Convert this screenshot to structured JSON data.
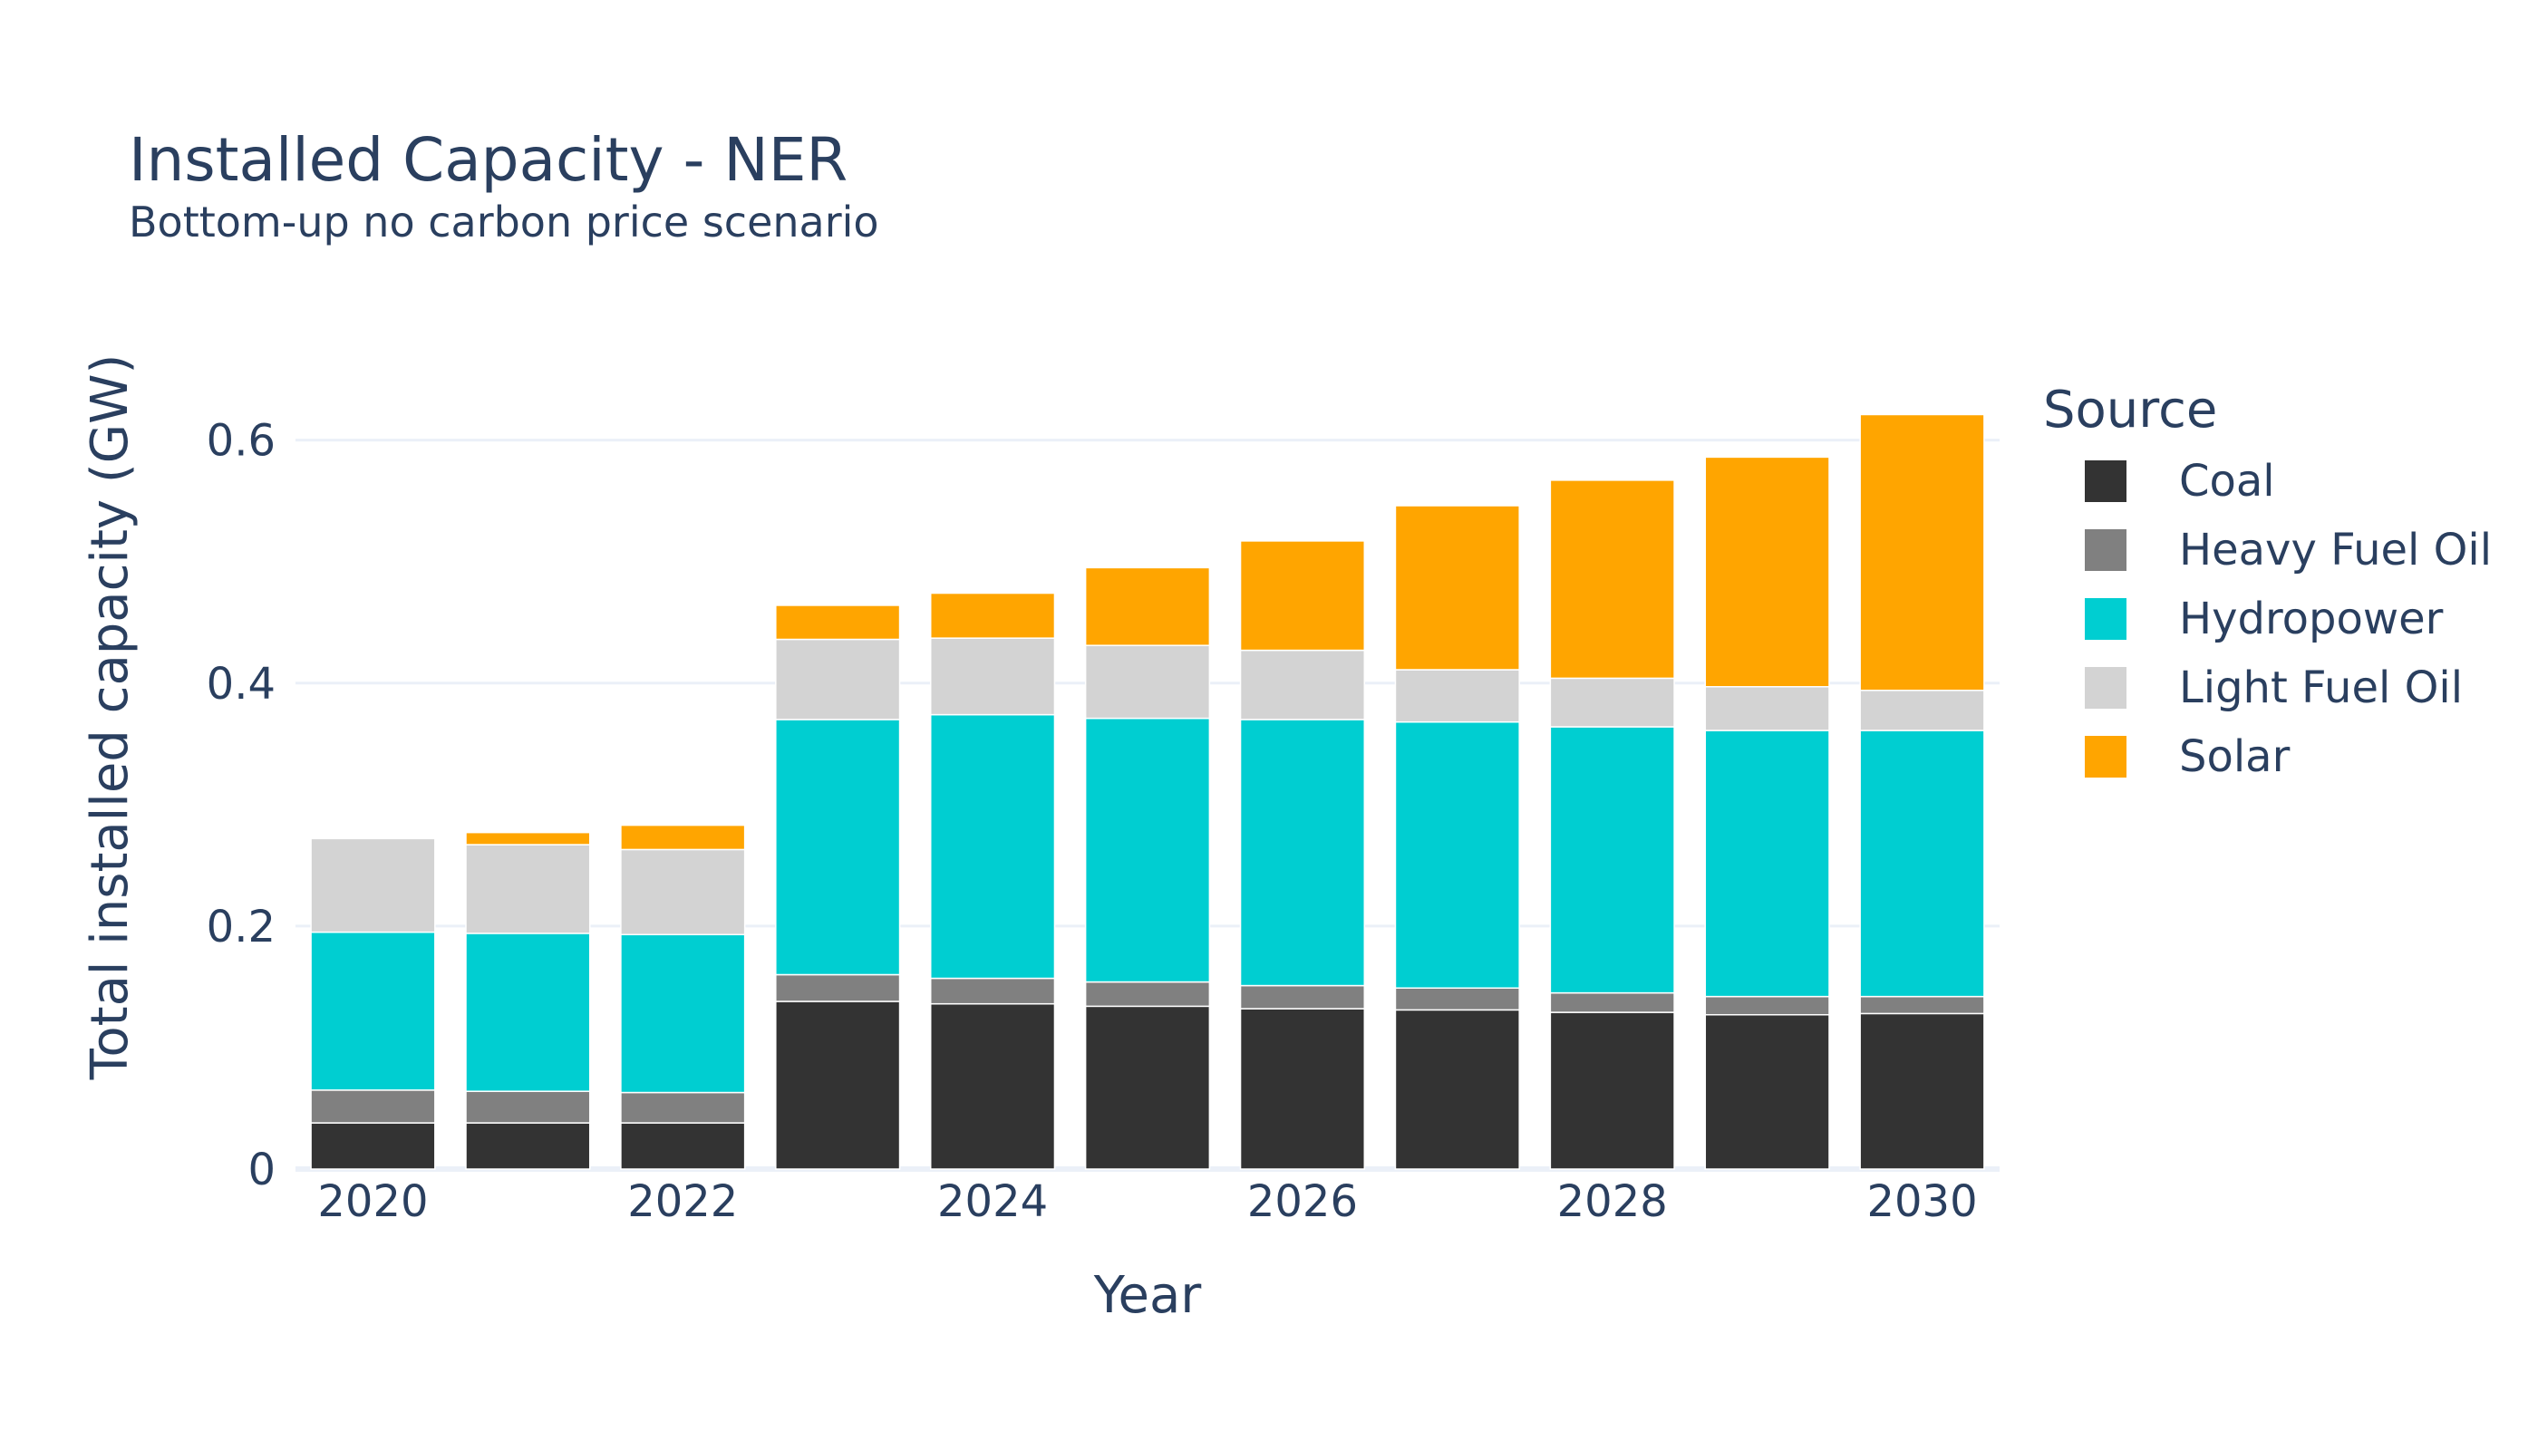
{
  "chart_data": {
    "type": "bar",
    "stacked": true,
    "title": "Installed Capacity - NER",
    "subtitle": "Bottom-up no carbon price scenario",
    "xlabel": "Year",
    "ylabel": "Total installed capacity (GW)",
    "x": [
      2020,
      2021,
      2022,
      2023,
      2024,
      2025,
      2026,
      2027,
      2028,
      2029,
      2030
    ],
    "x_ticks": [
      "2020",
      "2022",
      "2024",
      "2026",
      "2028",
      "2030"
    ],
    "y_ticks": [
      "0",
      "0.2",
      "0.4",
      "0.6"
    ],
    "ylim": [
      0,
      0.64
    ],
    "grid": true,
    "legend_title": "Source",
    "legend_position": "right",
    "series": [
      {
        "name": "Coal",
        "color": "#333333",
        "values": [
          0.038,
          0.038,
          0.038,
          0.138,
          0.136,
          0.134,
          0.132,
          0.131,
          0.129,
          0.127,
          0.128
        ]
      },
      {
        "name": "Heavy Fuel Oil",
        "color": "#808080",
        "values": [
          0.027,
          0.026,
          0.025,
          0.022,
          0.021,
          0.02,
          0.019,
          0.018,
          0.016,
          0.015,
          0.014
        ]
      },
      {
        "name": "Hydropower",
        "color": "#00ced1",
        "values": [
          0.13,
          0.13,
          0.13,
          0.21,
          0.217,
          0.217,
          0.219,
          0.219,
          0.219,
          0.219,
          0.219
        ]
      },
      {
        "name": "Light Fuel Oil",
        "color": "#d3d3d3",
        "values": [
          0.077,
          0.073,
          0.07,
          0.066,
          0.063,
          0.06,
          0.057,
          0.043,
          0.04,
          0.036,
          0.033
        ]
      },
      {
        "name": "Solar",
        "color": "#ffa500",
        "values": [
          0.0,
          0.01,
          0.02,
          0.028,
          0.037,
          0.064,
          0.09,
          0.135,
          0.163,
          0.189,
          0.227
        ]
      }
    ]
  }
}
